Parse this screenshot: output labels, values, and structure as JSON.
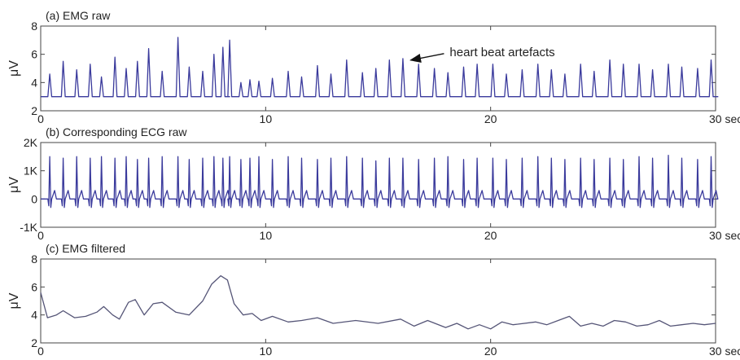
{
  "chart_data": [
    {
      "type": "line",
      "title": "(a)  EMG raw",
      "ylabel": "μV",
      "xlabel": "",
      "x_unit_label": "30 sec",
      "xlim": [
        0,
        30
      ],
      "ylim": [
        2,
        8
      ],
      "yticks": [
        2,
        4,
        6,
        8
      ],
      "xticks": [
        0,
        10,
        20,
        30
      ],
      "line_color": "#3a3a9c",
      "baseline": 3.0,
      "annotation": {
        "text": "heart beat artefacts",
        "points_to": {
          "x": 16.3,
          "y": 5.7
        }
      },
      "series": [
        {
          "x": [
            0.4,
            1.0,
            1.6,
            2.2,
            2.7,
            3.3,
            3.8,
            4.3,
            4.8,
            5.4,
            6.1,
            6.6,
            7.2,
            7.7,
            8.1,
            8.4,
            8.9,
            9.3,
            9.7,
            10.3,
            11.0,
            11.6,
            12.3,
            12.9,
            13.6,
            14.3,
            14.9,
            15.5,
            16.1,
            16.8,
            17.5,
            18.1,
            18.8,
            19.4,
            20.1,
            20.7,
            21.4,
            22.1,
            22.7,
            23.3,
            24.0,
            24.6,
            25.3,
            25.9,
            26.6,
            27.2,
            27.9,
            28.5,
            29.2,
            29.8
          ],
          "y": [
            4.6,
            5.5,
            4.9,
            5.3,
            4.4,
            5.8,
            5.0,
            5.5,
            6.4,
            4.8,
            7.2,
            5.1,
            4.8,
            6.0,
            6.5,
            7.0,
            4.0,
            4.2,
            4.1,
            4.3,
            4.8,
            4.4,
            5.2,
            4.6,
            5.6,
            4.7,
            5.0,
            5.6,
            5.7,
            5.3,
            5.0,
            4.7,
            5.1,
            5.3,
            5.3,
            4.6,
            4.9,
            5.3,
            4.9,
            4.6,
            5.3,
            4.8,
            5.6,
            5.3,
            5.3,
            4.9,
            5.3,
            5.1,
            5.0,
            5.6
          ]
        }
      ]
    },
    {
      "type": "line",
      "title": "(b)  Corresponding ECG raw",
      "ylabel": "μV",
      "xlabel": "",
      "x_unit_label": "30 sec",
      "xlim": [
        0,
        30
      ],
      "ylim": [
        -1000,
        2000
      ],
      "yticks": [
        -1000,
        0,
        1000,
        2000
      ],
      "ytick_labels": [
        "-1K",
        "0",
        "1K",
        "2K"
      ],
      "xticks": [
        0,
        10,
        20,
        30
      ],
      "line_color": "#3a3a9c",
      "baseline": 0,
      "series": [
        {
          "x": [
            0.4,
            1.0,
            1.6,
            2.2,
            2.7,
            3.3,
            3.8,
            4.3,
            4.8,
            5.4,
            6.1,
            6.6,
            7.2,
            7.7,
            8.1,
            8.4,
            8.9,
            9.3,
            9.7,
            10.3,
            11.0,
            11.6,
            12.3,
            12.9,
            13.6,
            14.3,
            14.9,
            15.5,
            16.1,
            16.8,
            17.5,
            18.1,
            18.8,
            19.4,
            20.1,
            20.7,
            21.4,
            22.1,
            22.7,
            23.3,
            24.0,
            24.6,
            25.3,
            25.9,
            26.6,
            27.2,
            27.9,
            28.5,
            29.2,
            29.8
          ],
          "y": [
            1500,
            1450,
            1500,
            1450,
            1500,
            1450,
            1500,
            1400,
            1450,
            1500,
            1500,
            1400,
            1450,
            1500,
            1450,
            1500,
            1400,
            1450,
            1500,
            1400,
            1500,
            1450,
            1400,
            1450,
            1500,
            1450,
            1350,
            1450,
            1450,
            1400,
            1450,
            1500,
            1400,
            1450,
            1450,
            1400,
            1450,
            1500,
            1450,
            1400,
            1450,
            1400,
            1450,
            1400,
            1500,
            1450,
            1550,
            1450,
            1400,
            1500
          ]
        }
      ]
    },
    {
      "type": "line",
      "title": "(c)  EMG filtered",
      "ylabel": "μV",
      "xlabel": "",
      "x_unit_label": "30 sec",
      "xlim": [
        0,
        30
      ],
      "ylim": [
        2,
        8
      ],
      "yticks": [
        2,
        4,
        6,
        8
      ],
      "xticks": [
        0,
        10,
        20,
        30
      ],
      "line_color": "#555577",
      "series": [
        {
          "x": [
            0,
            0.3,
            0.7,
            1.0,
            1.5,
            2.0,
            2.5,
            2.8,
            3.2,
            3.5,
            3.9,
            4.2,
            4.6,
            5.0,
            5.4,
            6.0,
            6.6,
            7.2,
            7.6,
            8.0,
            8.3,
            8.6,
            9.0,
            9.4,
            9.8,
            10.3,
            11.0,
            11.6,
            12.3,
            13.0,
            14.0,
            15.0,
            16.0,
            16.6,
            17.2,
            18.0,
            18.5,
            19.0,
            19.5,
            20.0,
            20.5,
            21.0,
            22.0,
            22.5,
            23.0,
            23.5,
            24.0,
            24.5,
            25.0,
            25.5,
            26.0,
            26.5,
            27.0,
            27.5,
            28.0,
            28.5,
            29.0,
            29.5,
            30.0
          ],
          "y": [
            5.6,
            3.8,
            4.0,
            4.3,
            3.8,
            3.9,
            4.2,
            4.6,
            4.0,
            3.7,
            4.9,
            5.1,
            4.0,
            4.8,
            4.9,
            4.2,
            4.0,
            5.0,
            6.2,
            6.8,
            6.5,
            4.8,
            4.0,
            4.1,
            3.6,
            3.9,
            3.5,
            3.6,
            3.8,
            3.4,
            3.6,
            3.4,
            3.7,
            3.2,
            3.6,
            3.1,
            3.4,
            3.0,
            3.3,
            3.0,
            3.5,
            3.3,
            3.5,
            3.3,
            3.6,
            3.9,
            3.2,
            3.4,
            3.2,
            3.6,
            3.5,
            3.2,
            3.3,
            3.6,
            3.2,
            3.3,
            3.4,
            3.3,
            3.4
          ]
        }
      ]
    }
  ]
}
